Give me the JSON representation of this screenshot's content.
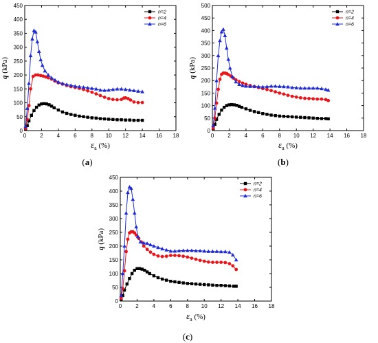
{
  "chart_data": [
    {
      "type": "line",
      "panel_label_parts": [
        "(",
        "a",
        ")"
      ],
      "xlabel_parts": [
        "ε",
        "a",
        " (%)"
      ],
      "ylabel_parts": [
        "q",
        " (kPa)"
      ],
      "xlim": [
        0,
        18
      ],
      "ylim": [
        0,
        450
      ],
      "xticks": [
        "0",
        "2",
        "4",
        "6",
        "8",
        "10",
        "12",
        "14",
        "16",
        "18"
      ],
      "yticks": [
        "0",
        "50",
        "100",
        "150",
        "200",
        "250",
        "300",
        "350",
        "400",
        "450"
      ],
      "legend_position": "top-right",
      "series": [
        {
          "name": "n=2",
          "color": "#000000",
          "marker": "square",
          "x": [
            0.1,
            0.3,
            0.5,
            0.8,
            1.1,
            1.4,
            1.7,
            2.0,
            2.3,
            2.6,
            2.9,
            3.2,
            3.5,
            4.0,
            4.5,
            5.0,
            5.5,
            6.0,
            6.5,
            7.0,
            7.5,
            8.0,
            8.5,
            9.0,
            9.5,
            10.0,
            10.5,
            11.0,
            11.5,
            12.0,
            12.5,
            13.0,
            13.5,
            14.0
          ],
          "y": [
            5,
            18,
            35,
            55,
            72,
            84,
            92,
            96,
            97,
            96,
            93,
            88,
            82,
            74,
            67,
            62,
            58,
            55,
            52,
            50,
            48,
            46,
            45,
            43,
            42,
            41,
            40,
            39,
            39,
            38,
            38,
            37,
            37,
            37
          ]
        },
        {
          "name": "n=4",
          "color": "#e8161b",
          "marker": "circle",
          "x": [
            0.1,
            0.3,
            0.5,
            0.7,
            1.0,
            1.3,
            1.6,
            1.9,
            2.2,
            2.5,
            2.8,
            3.2,
            3.6,
            4.0,
            4.5,
            5.0,
            5.5,
            6.0,
            6.5,
            7.0,
            7.5,
            8.0,
            8.5,
            9.0,
            9.5,
            10.0,
            10.5,
            11.0,
            11.5,
            11.8,
            12.0,
            12.3,
            12.6,
            13.0,
            13.5,
            14.0
          ],
          "y": [
            8,
            40,
            90,
            150,
            195,
            200,
            200,
            198,
            196,
            193,
            190,
            185,
            178,
            172,
            167,
            162,
            158,
            155,
            152,
            148,
            143,
            138,
            132,
            126,
            120,
            115,
            112,
            111,
            112,
            117,
            118,
            115,
            110,
            103,
            101,
            101
          ]
        },
        {
          "name": "n=6",
          "color": "#1f2bd1",
          "marker": "triangle",
          "x": [
            0.1,
            0.3,
            0.5,
            0.7,
            0.9,
            1.1,
            1.3,
            1.5,
            1.7,
            1.9,
            2.1,
            2.4,
            2.8,
            3.2,
            3.6,
            4.0,
            4.5,
            5.0,
            5.5,
            6.0,
            6.5,
            7.0,
            7.5,
            8.0,
            8.5,
            9.0,
            9.5,
            10.0,
            10.5,
            11.0,
            11.5,
            12.0,
            12.5,
            13.0,
            13.5,
            14.0
          ],
          "y": [
            15,
            80,
            170,
            270,
            330,
            360,
            355,
            320,
            285,
            255,
            235,
            215,
            200,
            190,
            182,
            175,
            170,
            166,
            163,
            160,
            158,
            156,
            154,
            152,
            150,
            146,
            145,
            146,
            148,
            150,
            150,
            148,
            146,
            144,
            142,
            140
          ]
        }
      ]
    },
    {
      "type": "line",
      "panel_label_parts": [
        "(",
        "b",
        ")"
      ],
      "xlabel_parts": [
        "ε",
        "a",
        " (%)"
      ],
      "ylabel_parts": [
        "q",
        " (kPa)"
      ],
      "xlim": [
        0,
        18
      ],
      "ylim": [
        0,
        500
      ],
      "xticks": [
        "0",
        "2",
        "4",
        "6",
        "8",
        "10",
        "12",
        "14",
        "16",
        "18"
      ],
      "yticks": [
        "0",
        "50",
        "100",
        "150",
        "200",
        "250",
        "300",
        "350",
        "400",
        "450",
        "500"
      ],
      "legend_position": "top-right",
      "series": [
        {
          "name": "n=2",
          "color": "#000000",
          "marker": "square",
          "x": [
            0.1,
            0.3,
            0.5,
            0.8,
            1.1,
            1.4,
            1.7,
            2.0,
            2.3,
            2.6,
            2.9,
            3.2,
            3.5,
            4.0,
            4.5,
            5.0,
            5.5,
            6.0,
            6.5,
            7.0,
            7.5,
            8.0,
            8.5,
            9.0,
            9.5,
            10.0,
            10.5,
            11.0,
            11.5,
            12.0,
            12.5,
            13.0,
            13.5,
            13.8
          ],
          "y": [
            8,
            25,
            45,
            65,
            82,
            93,
            100,
            103,
            104,
            103,
            101,
            97,
            93,
            87,
            81,
            76,
            72,
            68,
            65,
            62,
            60,
            58,
            57,
            56,
            55,
            54,
            53,
            52,
            51,
            50,
            49,
            48,
            48,
            47
          ]
        },
        {
          "name": "n=4",
          "color": "#e8161b",
          "marker": "circle",
          "x": [
            0.1,
            0.3,
            0.5,
            0.7,
            0.9,
            1.1,
            1.3,
            1.5,
            1.7,
            1.9,
            2.2,
            2.5,
            2.8,
            3.2,
            3.6,
            4.0,
            4.5,
            5.0,
            5.5,
            6.0,
            6.5,
            7.0,
            7.5,
            8.0,
            8.5,
            9.0,
            9.5,
            10.0,
            10.5,
            11.0,
            11.5,
            12.0,
            12.5,
            13.0,
            13.5,
            13.8
          ],
          "y": [
            10,
            50,
            110,
            165,
            205,
            225,
            230,
            230,
            228,
            224,
            218,
            210,
            203,
            196,
            190,
            185,
            180,
            176,
            172,
            168,
            164,
            160,
            155,
            150,
            146,
            141,
            137,
            134,
            131,
            129,
            128,
            127,
            126,
            126,
            124,
            120
          ]
        },
        {
          "name": "n=6",
          "color": "#1f2bd1",
          "marker": "triangle",
          "x": [
            0.1,
            0.3,
            0.5,
            0.7,
            0.9,
            1.1,
            1.3,
            1.5,
            1.7,
            1.9,
            2.1,
            2.4,
            2.8,
            3.2,
            3.6,
            4.0,
            4.5,
            5.0,
            5.5,
            6.0,
            6.5,
            7.0,
            7.5,
            8.0,
            8.5,
            9.0,
            9.5,
            10.0,
            10.5,
            11.0,
            11.5,
            12.0,
            12.5,
            13.0,
            13.5,
            13.8
          ],
          "y": [
            20,
            90,
            200,
            300,
            360,
            395,
            405,
            380,
            330,
            285,
            250,
            215,
            195,
            185,
            180,
            178,
            177,
            177,
            176,
            175,
            176,
            178,
            178,
            177,
            176,
            175,
            172,
            171,
            170,
            170,
            170,
            170,
            170,
            168,
            165,
            162
          ]
        }
      ]
    },
    {
      "type": "line",
      "panel_label_parts": [
        "(",
        "c",
        ")"
      ],
      "xlabel_parts": [
        "ε",
        "a",
        " (%)"
      ],
      "ylabel_parts": [
        "q",
        " (kPa)"
      ],
      "xlim": [
        0,
        18
      ],
      "ylim": [
        0,
        450
      ],
      "xticks": [
        "0",
        "2",
        "4",
        "6",
        "8",
        "10",
        "12",
        "14",
        "16",
        "18"
      ],
      "yticks": [
        "0",
        "50",
        "100",
        "150",
        "200",
        "250",
        "300",
        "350",
        "400",
        "450"
      ],
      "legend_position": "top-right",
      "series": [
        {
          "name": "n=2",
          "color": "#000000",
          "marker": "square",
          "x": [
            0.1,
            0.3,
            0.5,
            0.8,
            1.1,
            1.4,
            1.7,
            2.0,
            2.3,
            2.6,
            2.9,
            3.2,
            3.5,
            4.0,
            4.5,
            5.0,
            5.5,
            6.0,
            6.5,
            7.0,
            7.5,
            8.0,
            8.5,
            9.0,
            9.5,
            10.0,
            10.5,
            11.0,
            11.5,
            12.0,
            12.5,
            13.0,
            13.5,
            13.8
          ],
          "y": [
            5,
            20,
            40,
            62,
            82,
            100,
            112,
            118,
            118,
            116,
            112,
            106,
            100,
            92,
            85,
            80,
            76,
            72,
            70,
            68,
            66,
            64,
            63,
            62,
            61,
            60,
            59,
            58,
            57,
            57,
            56,
            55,
            54,
            54
          ]
        },
        {
          "name": "n=4",
          "color": "#e8161b",
          "marker": "circle",
          "x": [
            0.1,
            0.3,
            0.5,
            0.7,
            0.9,
            1.1,
            1.3,
            1.5,
            1.7,
            1.9,
            2.2,
            2.5,
            2.8,
            3.2,
            3.6,
            4.0,
            4.5,
            5.0,
            5.5,
            6.0,
            6.5,
            7.0,
            7.5,
            8.0,
            8.5,
            9.0,
            9.5,
            10.0,
            10.5,
            11.0,
            11.5,
            12.0,
            12.5,
            13.0,
            13.4,
            13.8
          ],
          "y": [
            10,
            45,
            110,
            180,
            225,
            248,
            252,
            252,
            248,
            240,
            228,
            215,
            200,
            188,
            178,
            170,
            164,
            162,
            163,
            166,
            166,
            165,
            163,
            160,
            156,
            152,
            148,
            145,
            142,
            141,
            141,
            141,
            140,
            136,
            128,
            115
          ]
        },
        {
          "name": "n=6",
          "color": "#1f2bd1",
          "marker": "triangle",
          "x": [
            0.1,
            0.3,
            0.5,
            0.7,
            0.9,
            1.1,
            1.3,
            1.5,
            1.7,
            1.9,
            2.1,
            2.4,
            2.8,
            3.2,
            3.6,
            4.0,
            4.5,
            5.0,
            5.5,
            6.0,
            6.5,
            7.0,
            7.5,
            8.0,
            8.5,
            9.0,
            9.5,
            10.0,
            10.5,
            11.0,
            11.5,
            12.0,
            12.5,
            13.0,
            13.4,
            13.8
          ],
          "y": [
            20,
            100,
            200,
            320,
            395,
            415,
            410,
            370,
            320,
            270,
            235,
            215,
            212,
            210,
            205,
            200,
            195,
            190,
            186,
            182,
            182,
            183,
            184,
            184,
            184,
            183,
            183,
            182,
            181,
            181,
            181,
            180,
            180,
            178,
            168,
            150
          ]
        }
      ]
    }
  ]
}
